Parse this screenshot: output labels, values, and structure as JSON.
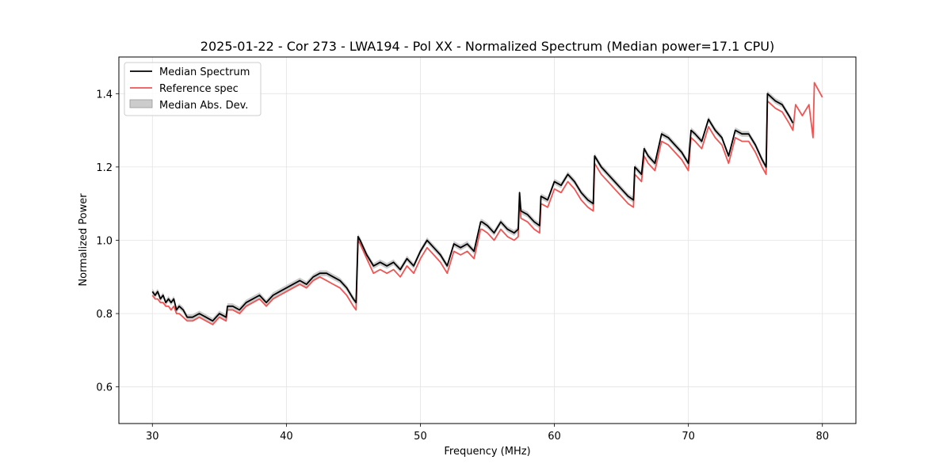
{
  "chart_data": {
    "type": "line",
    "title": "2025-01-22 - Cor 273 - LWA194 - Pol XX - Normalized Spectrum (Median power=17.1 CPU)",
    "xlabel": "Frequency (MHz)",
    "ylabel": "Normalized Power",
    "xlim": [
      27.5,
      82.5
    ],
    "ylim": [
      0.5,
      1.5
    ],
    "xticks": [
      30,
      40,
      50,
      60,
      70,
      80
    ],
    "yticks": [
      0.6,
      0.8,
      1.0,
      1.2,
      1.4
    ],
    "xtick_labels": [
      "30",
      "40",
      "50",
      "60",
      "70",
      "80"
    ],
    "ytick_labels": [
      "0.6",
      "0.8",
      "1.0",
      "1.2",
      "1.4"
    ],
    "grid": true,
    "legend_position": "top-left",
    "legend": [
      "Median Spectrum",
      "Reference spec",
      "Median Abs. Dev."
    ],
    "colors": {
      "median": "#000000",
      "reference": "#ee5555",
      "mad_fill": "#bbbbbb"
    },
    "series": [
      {
        "name": "Median Spectrum",
        "x": [
          30.0,
          30.2,
          30.4,
          30.6,
          30.8,
          31.0,
          31.2,
          31.4,
          31.6,
          31.8,
          32.0,
          32.3,
          32.6,
          33.0,
          33.5,
          34.0,
          34.5,
          35.0,
          35.5,
          35.6,
          36.0,
          36.5,
          37.0,
          37.5,
          38.0,
          38.5,
          39.0,
          39.5,
          40.0,
          40.5,
          41.0,
          41.5,
          42.0,
          42.5,
          43.0,
          43.5,
          44.0,
          44.5,
          45.0,
          45.2,
          45.35,
          45.5,
          46.0,
          46.5,
          47.0,
          47.5,
          48.0,
          48.5,
          49.0,
          49.5,
          50.0,
          50.5,
          51.0,
          51.5,
          52.0,
          52.5,
          53.0,
          53.5,
          54.0,
          54.5,
          54.6,
          55.0,
          55.5,
          56.0,
          56.5,
          57.0,
          57.3,
          57.4,
          57.5,
          58.0,
          58.5,
          58.9,
          59.0,
          59.5,
          60.0,
          60.5,
          61.0,
          61.5,
          62.0,
          62.5,
          62.9,
          63.0,
          63.5,
          64.0,
          64.5,
          65.0,
          65.5,
          65.9,
          66.0,
          66.5,
          66.7,
          67.0,
          67.5,
          68.0,
          68.5,
          69.0,
          69.5,
          70.0,
          70.2,
          70.5,
          71.0,
          71.5,
          72.0,
          72.5,
          73.0,
          73.5,
          74.0,
          74.5,
          75.0,
          75.5,
          75.8,
          75.9,
          76.5,
          77.0,
          77.5,
          77.8
        ],
        "values": [
          0.86,
          0.85,
          0.86,
          0.84,
          0.85,
          0.83,
          0.84,
          0.83,
          0.84,
          0.81,
          0.82,
          0.81,
          0.79,
          0.79,
          0.8,
          0.79,
          0.78,
          0.8,
          0.79,
          0.82,
          0.82,
          0.81,
          0.83,
          0.84,
          0.85,
          0.83,
          0.85,
          0.86,
          0.87,
          0.88,
          0.89,
          0.88,
          0.9,
          0.91,
          0.91,
          0.9,
          0.89,
          0.87,
          0.84,
          0.83,
          1.01,
          1.0,
          0.96,
          0.93,
          0.94,
          0.93,
          0.94,
          0.92,
          0.95,
          0.93,
          0.97,
          1.0,
          0.98,
          0.96,
          0.93,
          0.99,
          0.98,
          0.99,
          0.97,
          1.05,
          1.05,
          1.04,
          1.02,
          1.05,
          1.03,
          1.02,
          1.03,
          1.13,
          1.08,
          1.07,
          1.05,
          1.04,
          1.12,
          1.11,
          1.16,
          1.15,
          1.18,
          1.16,
          1.13,
          1.11,
          1.1,
          1.23,
          1.2,
          1.18,
          1.16,
          1.14,
          1.12,
          1.11,
          1.2,
          1.18,
          1.25,
          1.23,
          1.21,
          1.29,
          1.28,
          1.26,
          1.24,
          1.21,
          1.3,
          1.29,
          1.27,
          1.33,
          1.3,
          1.28,
          1.23,
          1.3,
          1.29,
          1.29,
          1.26,
          1.22,
          1.2,
          1.4,
          1.38,
          1.37,
          1.34,
          1.32
        ]
      },
      {
        "name": "Reference spec",
        "x": [
          30.0,
          30.2,
          30.4,
          30.6,
          30.8,
          31.0,
          31.2,
          31.4,
          31.6,
          31.8,
          32.0,
          32.3,
          32.6,
          33.0,
          33.5,
          34.0,
          34.5,
          35.0,
          35.5,
          35.6,
          36.0,
          36.5,
          37.0,
          37.5,
          38.0,
          38.5,
          39.0,
          39.5,
          40.0,
          40.5,
          41.0,
          41.5,
          42.0,
          42.5,
          43.0,
          43.5,
          44.0,
          44.5,
          45.0,
          45.2,
          45.35,
          45.5,
          46.0,
          46.5,
          47.0,
          47.5,
          48.0,
          48.5,
          49.0,
          49.5,
          50.0,
          50.5,
          51.0,
          51.5,
          52.0,
          52.5,
          53.0,
          53.5,
          54.0,
          54.5,
          54.6,
          55.0,
          55.5,
          56.0,
          56.5,
          57.0,
          57.3,
          57.4,
          57.5,
          58.0,
          58.5,
          58.9,
          59.0,
          59.5,
          60.0,
          60.5,
          61.0,
          61.5,
          62.0,
          62.5,
          62.9,
          63.0,
          63.5,
          64.0,
          64.5,
          65.0,
          65.5,
          65.9,
          66.0,
          66.5,
          66.7,
          67.0,
          67.5,
          68.0,
          68.5,
          69.0,
          69.5,
          70.0,
          70.2,
          70.5,
          71.0,
          71.5,
          72.0,
          72.5,
          73.0,
          73.5,
          74.0,
          74.5,
          75.0,
          75.5,
          75.8,
          75.9,
          76.5,
          77.0,
          77.5,
          77.8,
          78.0,
          78.5,
          79.0,
          79.3,
          79.4,
          80.0
        ],
        "values": [
          0.85,
          0.84,
          0.84,
          0.83,
          0.83,
          0.82,
          0.82,
          0.81,
          0.82,
          0.8,
          0.8,
          0.79,
          0.78,
          0.78,
          0.79,
          0.78,
          0.77,
          0.79,
          0.78,
          0.81,
          0.81,
          0.8,
          0.82,
          0.83,
          0.84,
          0.82,
          0.84,
          0.85,
          0.86,
          0.87,
          0.88,
          0.87,
          0.89,
          0.9,
          0.89,
          0.88,
          0.87,
          0.85,
          0.82,
          0.81,
          1.0,
          0.99,
          0.95,
          0.91,
          0.92,
          0.91,
          0.92,
          0.9,
          0.93,
          0.91,
          0.95,
          0.98,
          0.96,
          0.94,
          0.91,
          0.97,
          0.96,
          0.97,
          0.95,
          1.03,
          1.03,
          1.02,
          1.0,
          1.03,
          1.01,
          1.0,
          1.01,
          1.12,
          1.06,
          1.05,
          1.03,
          1.02,
          1.1,
          1.09,
          1.14,
          1.13,
          1.16,
          1.14,
          1.11,
          1.09,
          1.08,
          1.21,
          1.18,
          1.16,
          1.14,
          1.12,
          1.1,
          1.09,
          1.18,
          1.16,
          1.23,
          1.21,
          1.19,
          1.27,
          1.26,
          1.24,
          1.22,
          1.19,
          1.28,
          1.27,
          1.25,
          1.31,
          1.28,
          1.26,
          1.21,
          1.28,
          1.27,
          1.27,
          1.24,
          1.2,
          1.18,
          1.38,
          1.36,
          1.35,
          1.32,
          1.3,
          1.37,
          1.34,
          1.37,
          1.28,
          1.43,
          1.39
        ]
      }
    ],
    "mad_band": {
      "half_width": 0.008,
      "around": "Median Spectrum"
    }
  }
}
